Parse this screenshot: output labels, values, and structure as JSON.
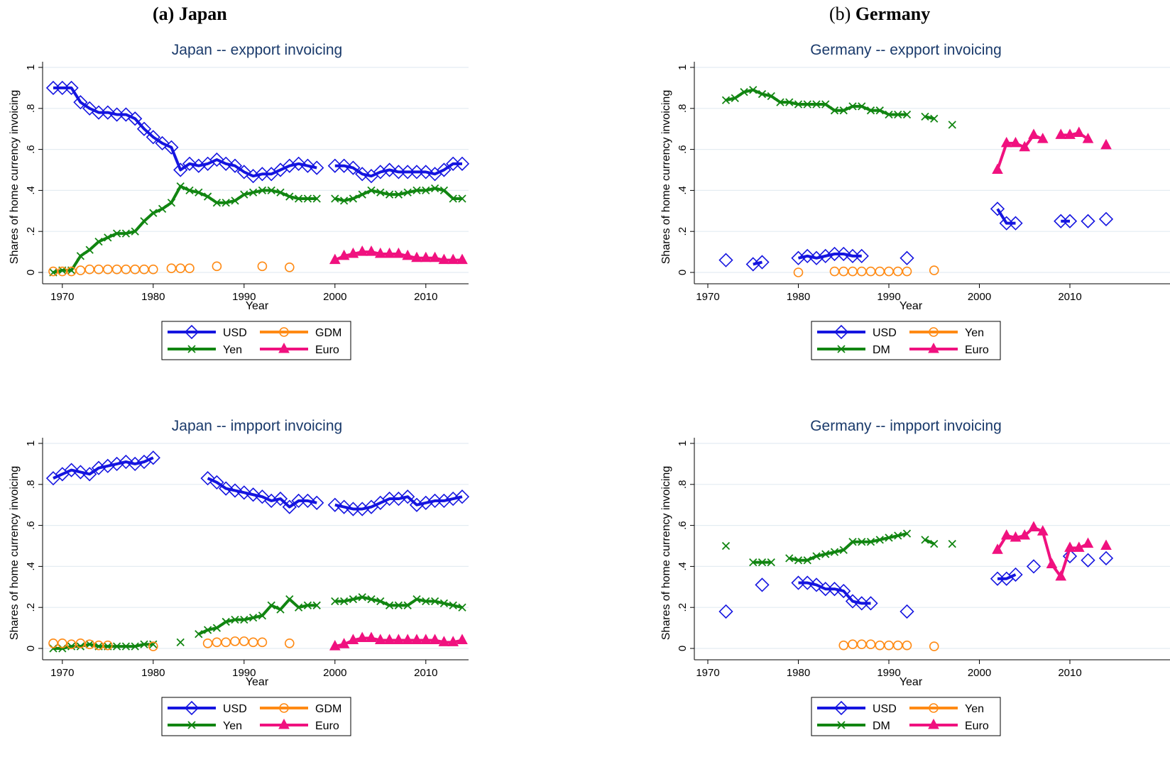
{
  "panels": [
    {
      "label_prefix": "(a) ",
      "label_country": "Japan"
    },
    {
      "label_prefix": "(b) ",
      "label_country": "Germany"
    }
  ],
  "colors": {
    "USD": "#1515e0",
    "Yen": "#118511",
    "DM": "#118511",
    "GDM": "#ff8a14",
    "YenImp": "#ff8a14",
    "Euro": "#f0117f",
    "title": "#1a3a6b",
    "grid": "#e4ecf2"
  },
  "chart_data": [
    {
      "type": "line",
      "title": "Japan -- expport invoicing",
      "xlabel": "Year",
      "ylabel": "Shares of home currency invoicing",
      "xlim": [
        1969,
        2014
      ],
      "ylim": [
        0,
        1
      ],
      "xticks": [
        1970,
        1980,
        1990,
        2000,
        2010
      ],
      "yticks": [
        0,
        0.2,
        0.4,
        0.6,
        0.8,
        1
      ],
      "ytick_labels": [
        "0",
        ".2",
        ".4",
        ".6",
        ".8",
        "1"
      ],
      "grid": true,
      "legend_position": "bottom",
      "series": [
        {
          "name": "USD",
          "marker": "diamond",
          "color": "#1515e0",
          "x": [
            1969,
            1970,
            1971,
            1972,
            1973,
            1974,
            1975,
            1976,
            1977,
            1978,
            1979,
            1980,
            1981,
            1982,
            1983,
            1984,
            1985,
            1986,
            1987,
            1988,
            1989,
            1990,
            1991,
            1992,
            1993,
            1994,
            1995,
            1996,
            1997,
            1998,
            null,
            2000,
            2001,
            2002,
            2003,
            2004,
            2005,
            2006,
            2007,
            2008,
            2009,
            2010,
            2011,
            2012,
            2013,
            2014
          ],
          "y": [
            0.9,
            0.9,
            0.9,
            0.83,
            0.8,
            0.78,
            0.78,
            0.77,
            0.77,
            0.75,
            0.7,
            0.66,
            0.63,
            0.61,
            0.5,
            0.53,
            0.52,
            0.53,
            0.55,
            0.53,
            0.52,
            0.49,
            0.47,
            0.48,
            0.48,
            0.5,
            0.52,
            0.53,
            0.52,
            0.51,
            null,
            0.52,
            0.52,
            0.51,
            0.48,
            0.47,
            0.49,
            0.5,
            0.49,
            0.49,
            0.49,
            0.49,
            0.48,
            0.5,
            0.53,
            0.53
          ]
        },
        {
          "name": "Yen",
          "marker": "x",
          "color": "#118511",
          "x": [
            1969,
            1970,
            1971,
            1972,
            1973,
            1974,
            1975,
            1976,
            1977,
            1978,
            1979,
            1980,
            1981,
            1982,
            1983,
            1984,
            1985,
            1986,
            1987,
            1988,
            1989,
            1990,
            1991,
            1992,
            1993,
            1994,
            1995,
            1996,
            1997,
            1998,
            null,
            2000,
            2001,
            2002,
            2003,
            2004,
            2005,
            2006,
            2007,
            2008,
            2009,
            2010,
            2011,
            2012,
            2013,
            2014
          ],
          "y": [
            0.0,
            0.01,
            0.01,
            0.08,
            0.11,
            0.15,
            0.17,
            0.19,
            0.19,
            0.2,
            0.25,
            0.29,
            0.31,
            0.34,
            0.42,
            0.4,
            0.39,
            0.37,
            0.34,
            0.34,
            0.35,
            0.38,
            0.39,
            0.4,
            0.4,
            0.39,
            0.37,
            0.36,
            0.36,
            0.36,
            null,
            0.36,
            0.35,
            0.36,
            0.38,
            0.4,
            0.39,
            0.38,
            0.38,
            0.39,
            0.4,
            0.4,
            0.41,
            0.4,
            0.36,
            0.36
          ]
        },
        {
          "name": "GDM",
          "marker": "circle",
          "color": "#ff8a14",
          "no_line": true,
          "x": [
            1969,
            1970,
            1971,
            1972,
            1973,
            1974,
            1975,
            1976,
            1977,
            1978,
            1979,
            1980,
            1982,
            1983,
            1984,
            1987,
            1992,
            1995
          ],
          "y": [
            0.005,
            0.005,
            0.005,
            0.01,
            0.015,
            0.015,
            0.015,
            0.015,
            0.015,
            0.015,
            0.015,
            0.015,
            0.02,
            0.02,
            0.02,
            0.03,
            0.03,
            0.025
          ]
        },
        {
          "name": "Euro",
          "marker": "triangle",
          "color": "#f0117f",
          "x": [
            2000,
            2001,
            2002,
            2003,
            2004,
            2005,
            2006,
            2007,
            2008,
            2009,
            2010,
            2011,
            2012,
            2013,
            2014
          ],
          "y": [
            0.06,
            0.08,
            0.09,
            0.1,
            0.1,
            0.09,
            0.09,
            0.09,
            0.08,
            0.07,
            0.07,
            0.07,
            0.06,
            0.06,
            0.06
          ]
        }
      ]
    },
    {
      "type": "line",
      "title": "Germany -- expport invoicing",
      "xlabel": "Year",
      "ylabel": "Shares of home currency invoicing",
      "xlim": [
        1968,
        2014
      ],
      "ylim": [
        0,
        1
      ],
      "xticks": [
        1970,
        1980,
        1990,
        2000,
        2010
      ],
      "yticks": [
        0,
        0.2,
        0.4,
        0.6,
        0.8,
        1
      ],
      "ytick_labels": [
        "0",
        ".2",
        ".4",
        ".6",
        ".8",
        "1"
      ],
      "grid": true,
      "legend_position": "bottom",
      "series": [
        {
          "name": "USD",
          "marker": "diamond",
          "color": "#1515e0",
          "x": [
            1972,
            null,
            1975,
            1976,
            null,
            1980,
            1981,
            1982,
            1983,
            1984,
            1985,
            1986,
            1987,
            null,
            1992,
            null,
            2002,
            2003,
            2004,
            null,
            2009,
            2010,
            null,
            2012,
            null,
            2014
          ],
          "y": [
            0.06,
            null,
            0.04,
            0.05,
            null,
            0.07,
            0.08,
            0.07,
            0.08,
            0.09,
            0.09,
            0.08,
            0.08,
            null,
            0.07,
            null,
            0.31,
            0.24,
            0.24,
            null,
            0.25,
            0.25,
            null,
            0.25,
            null,
            0.26
          ]
        },
        {
          "name": "DM",
          "marker": "x",
          "color": "#118511",
          "x": [
            1972,
            1973,
            1974,
            1975,
            1976,
            1977,
            1978,
            1979,
            1980,
            1981,
            1982,
            1983,
            1984,
            1985,
            1986,
            1987,
            1988,
            1989,
            1990,
            1991,
            1992,
            null,
            1994,
            1995,
            null,
            1997
          ],
          "y": [
            0.84,
            0.85,
            0.88,
            0.89,
            0.87,
            0.86,
            0.83,
            0.83,
            0.82,
            0.82,
            0.82,
            0.82,
            0.79,
            0.79,
            0.81,
            0.81,
            0.79,
            0.79,
            0.77,
            0.77,
            0.77,
            null,
            0.76,
            0.75,
            null,
            0.72
          ]
        },
        {
          "name": "Yen",
          "marker": "circle",
          "color": "#ff8a14",
          "no_line": true,
          "x": [
            1980,
            1984,
            1985,
            1986,
            1987,
            1988,
            1989,
            1990,
            1991,
            1992,
            1995
          ],
          "y": [
            0.0,
            0.005,
            0.005,
            0.005,
            0.005,
            0.005,
            0.005,
            0.005,
            0.005,
            0.005,
            0.01
          ]
        },
        {
          "name": "Euro",
          "marker": "triangle",
          "color": "#f0117f",
          "x": [
            2002,
            2003,
            2004,
            2005,
            2006,
            2007,
            null,
            2009,
            2010,
            2011,
            2012,
            null,
            2014
          ],
          "y": [
            0.5,
            0.63,
            0.63,
            0.61,
            0.67,
            0.65,
            null,
            0.67,
            0.67,
            0.68,
            0.65,
            null,
            0.62
          ]
        }
      ]
    },
    {
      "type": "line",
      "title": "Japan -- impport invoicing",
      "xlabel": "Year",
      "ylabel": "Shares of home currency invoicing",
      "xlim": [
        1969,
        2014
      ],
      "ylim": [
        0,
        1
      ],
      "xticks": [
        1970,
        1980,
        1990,
        2000,
        2010
      ],
      "yticks": [
        0,
        0.2,
        0.4,
        0.6,
        0.8,
        1
      ],
      "ytick_labels": [
        "0",
        ".2",
        ".4",
        ".6",
        ".8",
        "1"
      ],
      "grid": true,
      "legend_position": "bottom",
      "series": [
        {
          "name": "USD",
          "marker": "diamond",
          "color": "#1515e0",
          "x": [
            1969,
            1970,
            1971,
            1972,
            1973,
            1974,
            1975,
            1976,
            1977,
            1978,
            1979,
            1980,
            null,
            1986,
            1987,
            1988,
            1989,
            1990,
            1991,
            1992,
            1993,
            1994,
            1995,
            1996,
            1997,
            1998,
            null,
            2000,
            2001,
            2002,
            2003,
            2004,
            2005,
            2006,
            2007,
            2008,
            2009,
            2010,
            2011,
            2012,
            2013,
            2014
          ],
          "y": [
            0.83,
            0.85,
            0.87,
            0.86,
            0.85,
            0.88,
            0.89,
            0.9,
            0.91,
            0.9,
            0.91,
            0.93,
            null,
            0.83,
            0.81,
            0.78,
            0.77,
            0.76,
            0.75,
            0.74,
            0.72,
            0.73,
            0.69,
            0.72,
            0.72,
            0.71,
            null,
            0.7,
            0.69,
            0.68,
            0.68,
            0.69,
            0.71,
            0.73,
            0.73,
            0.74,
            0.7,
            0.71,
            0.72,
            0.72,
            0.73,
            0.74
          ]
        },
        {
          "name": "Yen",
          "marker": "x",
          "color": "#118511",
          "x": [
            1969,
            1970,
            1971,
            1972,
            1973,
            1974,
            1975,
            1976,
            1977,
            1978,
            1979,
            1980,
            null,
            1983,
            null,
            1985,
            1986,
            1987,
            1988,
            1989,
            1990,
            1991,
            1992,
            1993,
            1994,
            1995,
            1996,
            1997,
            1998,
            null,
            2000,
            2001,
            2002,
            2003,
            2004,
            2005,
            2006,
            2007,
            2008,
            2009,
            2010,
            2011,
            2012,
            2013,
            2014
          ],
          "y": [
            0.0,
            0.0,
            0.01,
            0.01,
            0.02,
            0.01,
            0.01,
            0.01,
            0.01,
            0.01,
            0.02,
            0.02,
            null,
            0.03,
            null,
            0.07,
            0.09,
            0.1,
            0.13,
            0.14,
            0.14,
            0.15,
            0.16,
            0.21,
            0.19,
            0.24,
            0.2,
            0.21,
            0.21,
            null,
            0.23,
            0.23,
            0.24,
            0.25,
            0.24,
            0.23,
            0.21,
            0.21,
            0.21,
            0.24,
            0.23,
            0.23,
            0.22,
            0.21,
            0.2
          ]
        },
        {
          "name": "GDM",
          "marker": "circle",
          "color": "#ff8a14",
          "no_line": true,
          "x": [
            1969,
            1970,
            1971,
            1972,
            1973,
            1974,
            1975,
            1980,
            1986,
            1987,
            1988,
            1989,
            1990,
            1991,
            1992,
            1995
          ],
          "y": [
            0.025,
            0.025,
            0.02,
            0.025,
            0.02,
            0.015,
            0.015,
            0.01,
            0.025,
            0.03,
            0.03,
            0.035,
            0.035,
            0.03,
            0.03,
            0.025
          ]
        },
        {
          "name": "Euro",
          "marker": "triangle",
          "color": "#f0117f",
          "x": [
            2000,
            2001,
            2002,
            2003,
            2004,
            2005,
            2006,
            2007,
            2008,
            2009,
            2010,
            2011,
            2012,
            2013,
            2014
          ],
          "y": [
            0.01,
            0.02,
            0.04,
            0.05,
            0.05,
            0.04,
            0.04,
            0.04,
            0.04,
            0.04,
            0.04,
            0.04,
            0.03,
            0.03,
            0.04
          ]
        }
      ]
    },
    {
      "type": "line",
      "title": "Germany -- impport invoicing",
      "xlabel": "Year",
      "ylabel": "Shares of home currency invoicing",
      "xlim": [
        1968,
        2014
      ],
      "ylim": [
        0,
        1
      ],
      "xticks": [
        1970,
        1980,
        1990,
        2000,
        2010
      ],
      "yticks": [
        0,
        0.2,
        0.4,
        0.6,
        0.8,
        1
      ],
      "ytick_labels": [
        "0",
        ".2",
        ".4",
        ".6",
        ".8",
        "1"
      ],
      "grid": true,
      "legend_position": "bottom",
      "series": [
        {
          "name": "USD",
          "marker": "diamond",
          "color": "#1515e0",
          "x": [
            1972,
            null,
            1976,
            null,
            1980,
            1981,
            1982,
            1983,
            1984,
            1985,
            1986,
            1987,
            1988,
            null,
            1992,
            null,
            2002,
            2003,
            2004,
            null,
            2006,
            null,
            2010,
            null,
            2012,
            null,
            2014
          ],
          "y": [
            0.18,
            null,
            0.31,
            null,
            0.32,
            0.32,
            0.31,
            0.29,
            0.29,
            0.28,
            0.23,
            0.22,
            0.22,
            null,
            0.18,
            null,
            0.34,
            0.34,
            0.36,
            null,
            0.4,
            null,
            0.45,
            null,
            0.43,
            null,
            0.44
          ]
        },
        {
          "name": "DM",
          "marker": "x",
          "color": "#118511",
          "x": [
            1972,
            null,
            1975,
            1976,
            1977,
            null,
            1979,
            1980,
            1981,
            1982,
            1983,
            1984,
            1985,
            1986,
            1987,
            1988,
            1989,
            1990,
            1991,
            1992,
            null,
            1994,
            1995,
            null,
            1997
          ],
          "y": [
            0.5,
            null,
            0.42,
            0.42,
            0.42,
            null,
            0.44,
            0.43,
            0.43,
            0.45,
            0.46,
            0.47,
            0.48,
            0.52,
            0.52,
            0.52,
            0.53,
            0.54,
            0.55,
            0.56,
            null,
            0.53,
            0.51,
            null,
            0.51
          ]
        },
        {
          "name": "Yen",
          "marker": "circle",
          "color": "#ff8a14",
          "no_line": true,
          "x": [
            1985,
            1986,
            1987,
            1988,
            1989,
            1990,
            1991,
            1992,
            1995
          ],
          "y": [
            0.015,
            0.02,
            0.02,
            0.02,
            0.015,
            0.015,
            0.015,
            0.015,
            0.01
          ]
        },
        {
          "name": "Euro",
          "marker": "triangle",
          "color": "#f0117f",
          "x": [
            2002,
            2003,
            2004,
            2005,
            2006,
            2007,
            2008,
            2009,
            2010,
            2011,
            2012,
            null,
            2014
          ],
          "y": [
            0.48,
            0.55,
            0.54,
            0.55,
            0.59,
            0.57,
            0.41,
            0.35,
            0.49,
            0.49,
            0.51,
            null,
            0.5
          ]
        }
      ]
    }
  ]
}
